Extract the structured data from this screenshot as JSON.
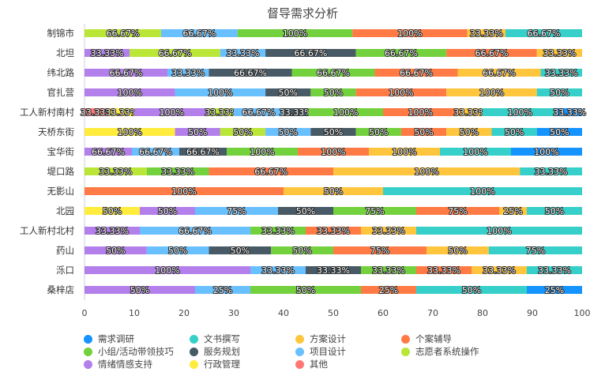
{
  "chart_data": {
    "type": "bar",
    "orientation": "horizontal",
    "stacked": "percent",
    "title": "督导需求分析",
    "xlim": [
      0,
      100
    ],
    "xticks": [
      "0",
      "10",
      "20",
      "30",
      "40",
      "50",
      "60",
      "70",
      "80",
      "90",
      "100"
    ],
    "legend_position": "bottom",
    "categories": [
      "制锦市",
      "北坦",
      "纬北路",
      "官扎营",
      "工人新村南村",
      "天桥东街",
      "宝华街",
      "堤口路",
      "无影山",
      "北园",
      "工人新村北村",
      "药山",
      "泺口",
      "桑梓店"
    ],
    "stack_order": [
      "其他",
      "行政管理",
      "情绪情感支持",
      "志愿者系统操作",
      "项目设计",
      "服务规划",
      "小组/活动带领技巧",
      "个案辅导",
      "方案设计",
      "文书撰写",
      "需求调研"
    ],
    "legend": [
      "需求调研",
      "文书撰写",
      "方案设计",
      "个案辅导",
      "小组/活动带领技巧",
      "服务规划",
      "项目设计",
      "志愿者系统操作",
      "情绪情感支持",
      "行政管理",
      "其他"
    ],
    "colors": {
      "需求调研": "#1593ff",
      "文书撰写": "#36cfc9",
      "方案设计": "#ffc53d",
      "个案辅导": "#ff7a45",
      "小组/活动带领技巧": "#73d13d",
      "服务规划": "#475a65",
      "项目设计": "#69c0ff",
      "志愿者系统操作": "#bae637",
      "情绪情感支持": "#b37feb",
      "行政管理": "#ffec3d",
      "其他": "#ff7875"
    },
    "rows": [
      [
        null,
        null,
        null,
        66.67,
        66.67,
        null,
        100,
        100,
        33.33,
        66.67,
        null
      ],
      [
        null,
        null,
        33.33,
        66.67,
        33.33,
        66.67,
        66.67,
        66.67,
        33.33,
        null,
        null
      ],
      [
        null,
        null,
        66.67,
        null,
        33.33,
        66.67,
        66.67,
        66.67,
        66.67,
        33.33,
        null
      ],
      [
        null,
        null,
        100,
        null,
        100,
        50,
        50,
        100,
        100,
        50,
        null
      ],
      [
        33.33,
        33.33,
        100,
        33.33,
        66.67,
        33.33,
        100,
        100,
        33.33,
        100,
        33.33
      ],
      [
        null,
        100,
        50,
        50,
        50,
        50,
        50,
        50,
        50,
        50,
        50
      ],
      [
        null,
        null,
        66.67,
        null,
        66.67,
        66.67,
        100,
        100,
        100,
        100,
        100
      ],
      [
        null,
        null,
        null,
        33.33,
        null,
        null,
        33.33,
        66.67,
        100,
        33.33,
        null
      ],
      [
        null,
        null,
        null,
        null,
        null,
        null,
        null,
        100,
        50,
        100,
        null
      ],
      [
        null,
        50,
        50,
        null,
        75,
        50,
        75,
        75,
        25,
        50,
        null
      ],
      [
        null,
        null,
        33.33,
        null,
        66.67,
        null,
        33.33,
        33.33,
        33.33,
        100,
        null
      ],
      [
        null,
        null,
        50,
        null,
        50,
        50,
        50,
        75,
        50,
        75,
        null
      ],
      [
        null,
        null,
        100,
        null,
        33.33,
        33.33,
        33.33,
        33.33,
        33.33,
        33.33,
        null
      ],
      [
        null,
        null,
        50,
        null,
        25,
        null,
        50,
        25,
        null,
        50,
        25
      ]
    ]
  }
}
